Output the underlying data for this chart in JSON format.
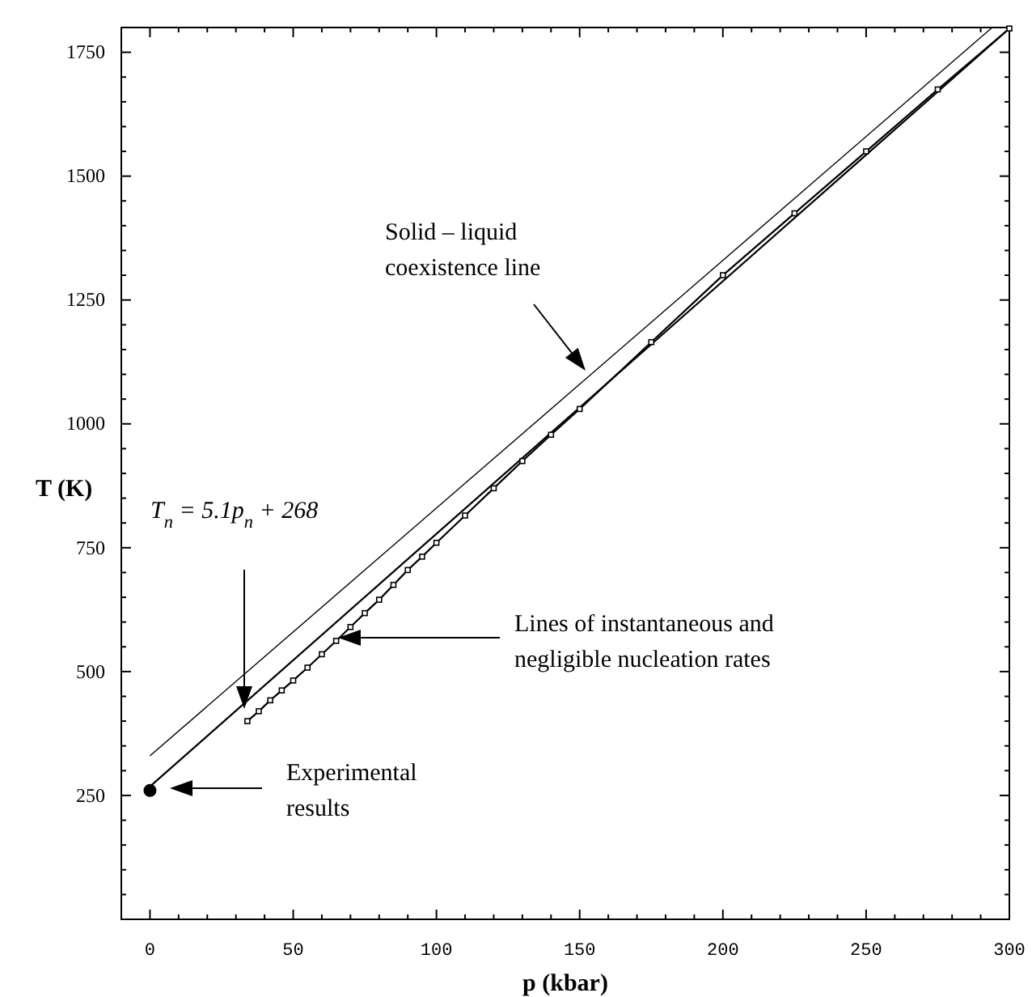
{
  "chart_data": {
    "type": "line",
    "xlabel": "p (kbar)",
    "ylabel": "T (K)",
    "xlim": [
      -10,
      300
    ],
    "ylim": [
      0,
      1800
    ],
    "xticks": [
      {
        "value": -10,
        "label": null
      },
      0,
      {
        "value": 10,
        "label": null
      },
      {
        "value": 20,
        "label": null
      },
      {
        "value": 30,
        "label": null
      },
      {
        "value": 40,
        "label": null
      },
      50,
      {
        "value": 60,
        "label": null
      },
      {
        "value": 70,
        "label": null
      },
      {
        "value": 80,
        "label": null
      },
      {
        "value": 90,
        "label": null
      },
      100,
      {
        "value": 110,
        "label": null
      },
      {
        "value": 120,
        "label": null
      },
      {
        "value": 130,
        "label": null
      },
      {
        "value": 140,
        "label": null
      },
      150,
      {
        "value": 160,
        "label": null
      },
      {
        "value": 170,
        "label": null
      },
      {
        "value": 180,
        "label": null
      },
      {
        "value": 190,
        "label": null
      },
      200,
      {
        "value": 210,
        "label": null
      },
      {
        "value": 220,
        "label": null
      },
      {
        "value": 230,
        "label": null
      },
      {
        "value": 240,
        "label": null
      },
      250,
      {
        "value": 260,
        "label": null
      },
      {
        "value": 270,
        "label": null
      },
      {
        "value": 280,
        "label": null
      },
      {
        "value": 290,
        "label": null
      },
      300
    ],
    "yticks": [
      {
        "value": 50,
        "label": null
      },
      {
        "value": 100,
        "label": null
      },
      {
        "value": 150,
        "label": null
      },
      {
        "value": 200,
        "label": null
      },
      250,
      {
        "value": 300,
        "label": null
      },
      {
        "value": 350,
        "label": null
      },
      {
        "value": 400,
        "label": null
      },
      {
        "value": 450,
        "label": null
      },
      500,
      {
        "value": 550,
        "label": null
      },
      {
        "value": 600,
        "label": null
      },
      {
        "value": 650,
        "label": null
      },
      {
        "value": 700,
        "label": null
      },
      750,
      {
        "value": 800,
        "label": null
      },
      {
        "value": 850,
        "label": null
      },
      {
        "value": 900,
        "label": null
      },
      {
        "value": 950,
        "label": null
      },
      1000,
      {
        "value": 1050,
        "label": null
      },
      {
        "value": 1100,
        "label": null
      },
      {
        "value": 1150,
        "label": null
      },
      {
        "value": 1200,
        "label": null
      },
      1250,
      {
        "value": 1300,
        "label": null
      },
      {
        "value": 1350,
        "label": null
      },
      {
        "value": 1400,
        "label": null
      },
      {
        "value": 1450,
        "label": null
      },
      1500,
      {
        "value": 1550,
        "label": null
      },
      {
        "value": 1600,
        "label": null
      },
      {
        "value": 1650,
        "label": null
      },
      {
        "value": 1700,
        "label": null
      },
      1750
    ],
    "grid": false,
    "series": [
      {
        "color": "#000000",
        "x": [
          0,
          294
        ],
        "values": [
          330,
          1800
        ],
        "line_style": "solid"
      },
      {
        "color": "#000000",
        "x": [
          0,
          300
        ],
        "values": [
          268,
          1798
        ],
        "line_style": "solid"
      },
      {
        "color": "#000000",
        "x": [
          34,
          38,
          42,
          46,
          50,
          55,
          60,
          65,
          70,
          75,
          80,
          85,
          90,
          95,
          100,
          110,
          120,
          130,
          140,
          150,
          175,
          200,
          225,
          250,
          275,
          300
        ],
        "values": [
          400,
          420,
          442,
          462,
          482,
          508,
          535,
          562,
          590,
          618,
          645,
          675,
          705,
          732,
          760,
          815,
          870,
          925,
          978,
          1030,
          1165,
          1300,
          1425,
          1550,
          1675,
          1798
        ],
        "line_style": "solid",
        "marker": "square"
      },
      {
        "type": "scatter",
        "color": "#000000",
        "x": [
          0
        ],
        "values": [
          260
        ],
        "marker": "circle"
      }
    ],
    "annotations": [
      "Solid – liquid\ncoexistence line",
      "T$_{n}$ = 5.1p$_{n}$ + 268",
      "Lines of instantaneous and\nnegligible nucleation rates",
      "Experimental\nresults"
    ]
  }
}
